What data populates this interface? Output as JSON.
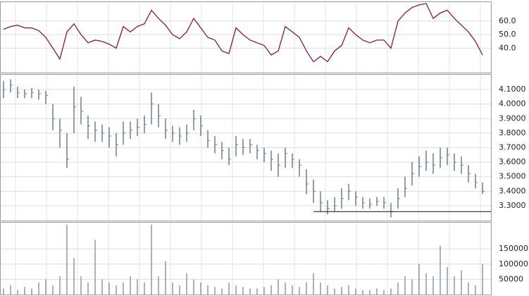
{
  "chart_data": [
    {
      "type": "line",
      "categories": [
        null,
        null,
        null,
        null,
        null,
        null,
        null,
        null,
        null,
        null,
        null,
        null,
        null,
        null,
        null,
        null,
        null,
        null,
        null,
        null,
        null,
        null,
        null,
        null,
        null,
        null,
        null,
        null,
        null,
        null,
        null,
        null,
        null,
        null,
        null,
        null,
        null,
        null,
        null,
        null,
        null,
        null,
        null,
        null,
        null,
        null,
        null,
        null,
        null,
        null,
        null,
        null,
        null,
        null,
        null,
        null,
        null,
        null,
        null,
        null,
        null,
        null,
        null,
        null,
        null,
        null,
        null,
        null,
        null
      ],
      "values": [
        54,
        56,
        57,
        55,
        55,
        53,
        48,
        40,
        32,
        52,
        58,
        50,
        44,
        46,
        45,
        43,
        40,
        56,
        52,
        56,
        58,
        68,
        62,
        57,
        50,
        47,
        52,
        62,
        55,
        48,
        46,
        38,
        36,
        55,
        50,
        46,
        44,
        42,
        35,
        38,
        56,
        52,
        48,
        38,
        30,
        34,
        30,
        38,
        42,
        55,
        50,
        46,
        44,
        46,
        46,
        40,
        60,
        66,
        70,
        72,
        73,
        62,
        66,
        68,
        62,
        57,
        52,
        45,
        35
      ],
      "color": "#8b1a3a",
      "ylim": [
        22,
        74
      ],
      "yticks": [
        {
          "value": 40,
          "label": "40.0"
        },
        {
          "value": 50,
          "label": "50.0"
        },
        {
          "value": 60,
          "label": "60.0"
        }
      ],
      "grid": true
    },
    {
      "type": "ohlc",
      "categories": [
        null,
        null,
        null,
        null,
        null,
        null,
        null,
        null,
        null,
        null,
        null,
        null,
        null,
        null,
        null,
        null,
        null,
        null,
        null,
        null,
        null,
        null,
        null,
        null,
        null,
        null,
        null,
        null,
        null,
        null,
        null,
        null,
        null,
        null,
        null,
        null,
        null,
        null,
        null,
        null,
        null,
        null,
        null,
        null,
        null,
        null,
        null,
        null,
        null,
        null,
        null,
        null,
        null,
        null,
        null,
        null,
        null,
        null,
        null,
        null,
        null,
        null,
        null,
        null,
        null,
        null,
        null,
        null,
        null
      ],
      "high": [
        4.16,
        4.17,
        4.12,
        4.1,
        4.11,
        4.1,
        4.09,
        4.0,
        3.9,
        3.8,
        4.12,
        4.05,
        3.92,
        3.88,
        3.86,
        3.84,
        3.8,
        3.88,
        3.88,
        3.9,
        3.92,
        4.08,
        4.0,
        3.9,
        3.85,
        3.84,
        3.86,
        3.96,
        3.92,
        3.82,
        3.78,
        3.74,
        3.7,
        3.78,
        3.76,
        3.76,
        3.72,
        3.7,
        3.68,
        3.66,
        3.7,
        3.66,
        3.62,
        3.55,
        3.48,
        3.4,
        3.34,
        3.36,
        3.42,
        3.45,
        3.4,
        3.36,
        3.35,
        3.36,
        3.36,
        3.32,
        3.42,
        3.5,
        3.6,
        3.64,
        3.68,
        3.66,
        3.7,
        3.7,
        3.66,
        3.64,
        3.58,
        3.52,
        3.46
      ],
      "low": [
        4.04,
        4.08,
        4.04,
        4.04,
        4.04,
        4.03,
        4.0,
        3.82,
        3.7,
        3.56,
        3.8,
        3.86,
        3.76,
        3.74,
        3.74,
        3.7,
        3.64,
        3.72,
        3.76,
        3.78,
        3.8,
        3.86,
        3.84,
        3.76,
        3.74,
        3.72,
        3.74,
        3.82,
        3.78,
        3.7,
        3.66,
        3.62,
        3.58,
        3.64,
        3.65,
        3.66,
        3.62,
        3.6,
        3.54,
        3.5,
        3.56,
        3.56,
        3.5,
        3.38,
        3.32,
        3.26,
        3.24,
        3.26,
        3.28,
        3.34,
        3.3,
        3.28,
        3.28,
        3.3,
        3.28,
        3.22,
        3.28,
        3.36,
        3.44,
        3.5,
        3.54,
        3.52,
        3.56,
        3.58,
        3.54,
        3.52,
        3.46,
        3.42,
        3.38
      ],
      "close": [
        4.1,
        4.13,
        4.08,
        4.07,
        4.08,
        4.07,
        4.06,
        3.9,
        3.82,
        3.62,
        3.98,
        3.95,
        3.85,
        3.82,
        3.8,
        3.78,
        3.72,
        3.8,
        3.82,
        3.84,
        3.86,
        4.0,
        3.92,
        3.82,
        3.8,
        3.78,
        3.8,
        3.9,
        3.85,
        3.75,
        3.72,
        3.68,
        3.62,
        3.72,
        3.7,
        3.72,
        3.68,
        3.66,
        3.62,
        3.58,
        3.66,
        3.62,
        3.58,
        3.45,
        3.4,
        3.32,
        3.28,
        3.3,
        3.35,
        3.4,
        3.36,
        3.32,
        3.31,
        3.33,
        3.32,
        3.26,
        3.35,
        3.42,
        3.52,
        3.57,
        3.6,
        3.58,
        3.63,
        3.65,
        3.6,
        3.58,
        3.52,
        3.46,
        3.4
      ],
      "color": "#6b7f91",
      "hline": 3.26,
      "ylim": [
        3.198,
        4.202
      ],
      "yticks": [
        {
          "value": 3.3,
          "label": "3.3000"
        },
        {
          "value": 3.4,
          "label": "3.4000"
        },
        {
          "value": 3.5,
          "label": "3.5000"
        },
        {
          "value": 3.6,
          "label": "3.6000"
        },
        {
          "value": 3.7,
          "label": "3.7000"
        },
        {
          "value": 3.8,
          "label": "3.8000"
        },
        {
          "value": 3.9,
          "label": "3.9000"
        },
        {
          "value": 4.0,
          "label": "4.0000"
        },
        {
          "value": 4.1,
          "label": "4.1000"
        }
      ],
      "grid": true
    },
    {
      "type": "bar",
      "categories": [
        null,
        null,
        null,
        null,
        null,
        null,
        null,
        null,
        null,
        null,
        null,
        null,
        null,
        null,
        null,
        null,
        null,
        null,
        null,
        null,
        null,
        null,
        null,
        null,
        null,
        null,
        null,
        null,
        null,
        null,
        null,
        null,
        null,
        null,
        null,
        null,
        null,
        null,
        null,
        null,
        null,
        null,
        null,
        null,
        null,
        null,
        null,
        null,
        null,
        null,
        null,
        null,
        null,
        null,
        null,
        null,
        null,
        null,
        null,
        null,
        null,
        null,
        null,
        null,
        null,
        null,
        null,
        null,
        null
      ],
      "values": [
        20000,
        30000,
        15000,
        25000,
        20000,
        40000,
        50000,
        30000,
        60000,
        230000,
        120000,
        60000,
        40000,
        180000,
        50000,
        40000,
        30000,
        40000,
        60000,
        50000,
        40000,
        230000,
        60000,
        110000,
        40000,
        30000,
        70000,
        50000,
        40000,
        30000,
        25000,
        20000,
        40000,
        30000,
        25000,
        20000,
        20000,
        25000,
        30000,
        50000,
        40000,
        30000,
        25000,
        40000,
        70000,
        40000,
        30000,
        20000,
        25000,
        30000,
        20000,
        15000,
        15000,
        20000,
        15000,
        20000,
        40000,
        60000,
        50000,
        100000,
        70000,
        60000,
        160000,
        90000,
        60000,
        80000,
        40000,
        30000,
        100000
      ],
      "color": "#8a9aa8",
      "ylim": [
        0,
        236000
      ],
      "yticks": [
        50000,
        100000,
        150000
      ],
      "grid": true
    }
  ]
}
